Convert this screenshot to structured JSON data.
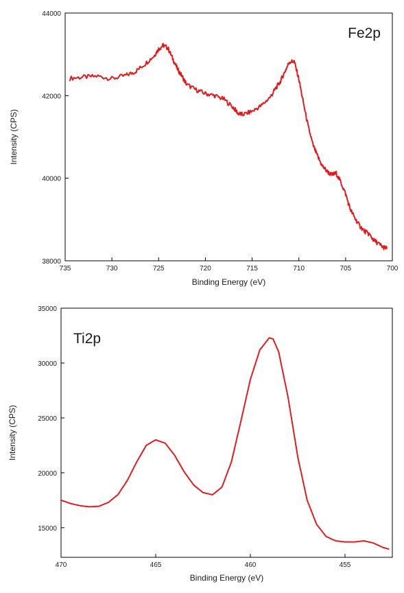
{
  "chart_data": [
    {
      "type": "line",
      "title": "Fe2p",
      "xlabel": "Binding Energy (eV)",
      "ylabel": "Intensity (CPS)",
      "xlim": [
        735,
        700
      ],
      "ylim": [
        38000,
        44000
      ],
      "x_reversed": true,
      "grid": false,
      "x_ticks": [
        "735",
        "730",
        "725",
        "720",
        "715",
        "710",
        "705",
        "700"
      ],
      "y_ticks": [
        "38000",
        "40000",
        "42000",
        "44000"
      ],
      "series": [
        {
          "color": "#e31a1c",
          "x": [
            734.5,
            733,
            731.5,
            730,
            728.5,
            727.5,
            726.5,
            725.5,
            725,
            724.5,
            724,
            723.5,
            723,
            722.5,
            722,
            721,
            720,
            719,
            718,
            717,
            716.5,
            716,
            715,
            714,
            713,
            712.5,
            712,
            711.5,
            711,
            710.5,
            710,
            709.5,
            709,
            708.5,
            708,
            707.5,
            707,
            706.5,
            706,
            705.5,
            705,
            704.5,
            704,
            703.5,
            703,
            702.5,
            702,
            701.5,
            701,
            700.6
          ],
          "y": [
            42420,
            42450,
            42470,
            42410,
            42490,
            42580,
            42760,
            42960,
            43130,
            43220,
            43150,
            42900,
            42650,
            42470,
            42270,
            42140,
            42050,
            42000,
            41910,
            41710,
            41570,
            41540,
            41620,
            41760,
            41980,
            42170,
            42330,
            42580,
            42820,
            42830,
            42400,
            41810,
            41250,
            40810,
            40530,
            40300,
            40170,
            40080,
            40120,
            39900,
            39620,
            39250,
            39030,
            38850,
            38720,
            38650,
            38500,
            38420,
            38330,
            38300
          ]
        }
      ]
    },
    {
      "type": "line",
      "title": "Ti2p",
      "xlabel": "Binding Energy (eV)",
      "ylabel": "Intensity (CPS)",
      "xlim": [
        470,
        452.5
      ],
      "ylim": [
        12300,
        35000
      ],
      "x_reversed": true,
      "grid": false,
      "x_ticks": [
        "470",
        "465",
        "460",
        "455"
      ],
      "y_ticks": [
        "15000",
        "20000",
        "25000",
        "30000",
        "35000"
      ],
      "series": [
        {
          "color": "#e31a1c",
          "x": [
            470,
            469.5,
            469,
            468.5,
            468,
            467.5,
            467,
            466.5,
            466,
            465.5,
            465,
            464.5,
            464,
            463.5,
            463,
            462.5,
            462,
            461.5,
            461,
            460.5,
            460,
            459.5,
            459,
            458.8,
            458.5,
            458,
            457.5,
            457,
            456.5,
            456,
            455.5,
            455,
            454.5,
            454,
            453.5,
            453,
            452.7
          ],
          "y": [
            17500,
            17200,
            17000,
            16900,
            16950,
            17300,
            18000,
            19300,
            21000,
            22500,
            23000,
            22700,
            21600,
            20100,
            18900,
            18200,
            18000,
            18700,
            21000,
            24700,
            28500,
            31200,
            32300,
            32200,
            31000,
            26800,
            21500,
            17500,
            15300,
            14200,
            13800,
            13700,
            13700,
            13800,
            13600,
            13200,
            13050
          ]
        }
      ]
    }
  ]
}
